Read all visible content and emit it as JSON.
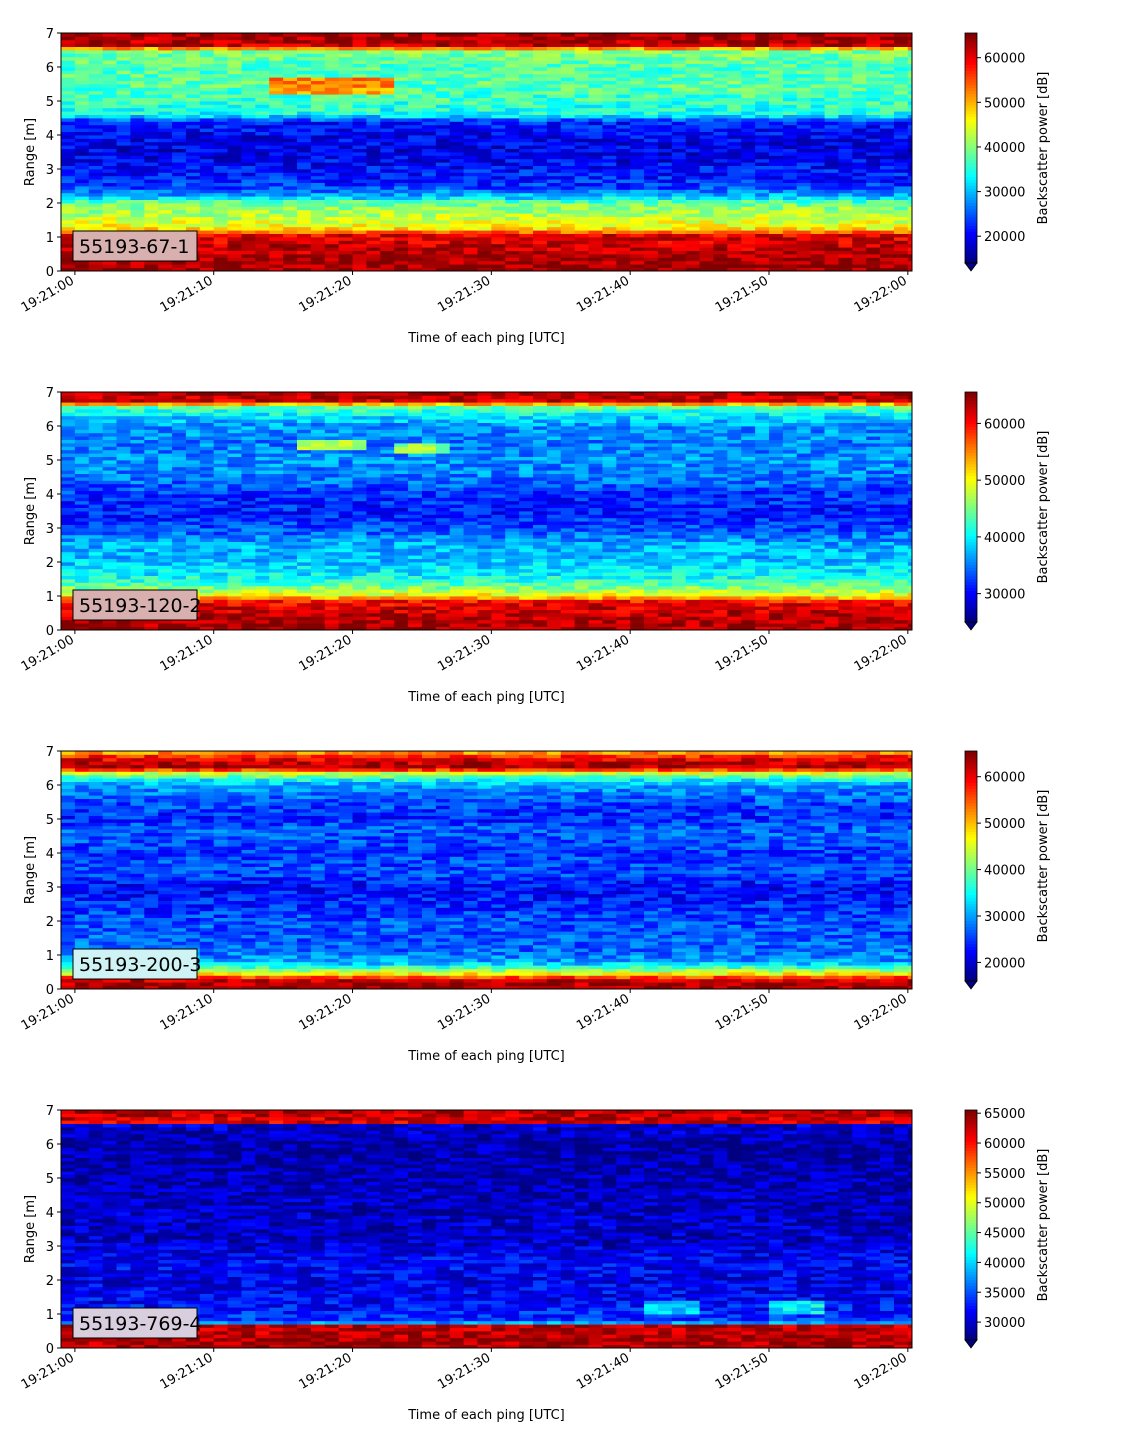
{
  "chart_data": [
    {
      "type": "heatmap",
      "label": "55193-67-1",
      "label_bg": "#d8b0b0",
      "xlabel": "Time of each ping [UTC]",
      "ylabel": "Range [m]",
      "colorbar_label": "Backscatter power [dB]",
      "xticks": [
        "19:21:00",
        "19:21:10",
        "19:21:20",
        "19:21:30",
        "19:21:40",
        "19:21:50",
        "19:22:00"
      ],
      "yticks": [
        "0",
        "1",
        "2",
        "3",
        "4",
        "5",
        "6",
        "7"
      ],
      "ylim": [
        0,
        7
      ],
      "xlim_seconds": [
        -1,
        60.3
      ],
      "cbar_ticks": [
        "20000",
        "30000",
        "40000",
        "50000",
        "60000"
      ],
      "clim": [
        14000,
        65535
      ],
      "colormap": "jet",
      "cbar_extend": "min",
      "profile": [
        [
          0.2,
          64000
        ],
        [
          0.5,
          63000
        ],
        [
          0.9,
          61000
        ],
        [
          1.1,
          60000
        ],
        [
          1.2,
          48000
        ],
        [
          1.5,
          44000
        ],
        [
          2.0,
          39000
        ],
        [
          2.2,
          30000
        ],
        [
          2.5,
          23000
        ],
        [
          3.0,
          21000
        ],
        [
          3.5,
          19000
        ],
        [
          4.0,
          20000
        ],
        [
          4.4,
          22000
        ],
        [
          4.6,
          34000
        ],
        [
          5.0,
          36000
        ],
        [
          5.5,
          38000
        ],
        [
          6.0,
          37000
        ],
        [
          6.5,
          40000
        ],
        [
          6.6,
          62000
        ],
        [
          7.0,
          64000
        ]
      ],
      "patches": [
        {
          "t": [
            14,
            22
          ],
          "r": [
            5.2,
            5.7
          ],
          "v": 52000
        }
      ]
    },
    {
      "type": "heatmap",
      "label": "55193-120-2",
      "label_bg": "#d8b0b0",
      "xlabel": "Time of each ping [UTC]",
      "ylabel": "Range [m]",
      "colorbar_label": "Backscatter power [dB]",
      "xticks": [
        "19:21:00",
        "19:21:10",
        "19:21:20",
        "19:21:30",
        "19:21:40",
        "19:21:50",
        "19:22:00"
      ],
      "yticks": [
        "0",
        "1",
        "2",
        "3",
        "4",
        "5",
        "6",
        "7"
      ],
      "ylim": [
        0,
        7
      ],
      "xlim_seconds": [
        -1,
        60.3
      ],
      "cbar_ticks": [
        "30000",
        "40000",
        "50000",
        "60000"
      ],
      "clim": [
        25000,
        65535
      ],
      "colormap": "jet",
      "cbar_extend": "min",
      "profile": [
        [
          0.2,
          64000
        ],
        [
          0.7,
          62000
        ],
        [
          0.85,
          60000
        ],
        [
          1.0,
          51000
        ],
        [
          1.3,
          44000
        ],
        [
          1.6,
          40000
        ],
        [
          2.0,
          38000
        ],
        [
          2.5,
          37000
        ],
        [
          3.0,
          33000
        ],
        [
          3.5,
          31000
        ],
        [
          4.0,
          32000
        ],
        [
          4.5,
          35000
        ],
        [
          5.0,
          36000
        ],
        [
          5.5,
          35000
        ],
        [
          6.0,
          36000
        ],
        [
          6.3,
          39000
        ],
        [
          6.6,
          45000
        ],
        [
          6.7,
          62000
        ],
        [
          7.0,
          64000
        ]
      ],
      "patches": [
        {
          "t": [
            16,
            20
          ],
          "r": [
            5.3,
            5.6
          ],
          "v": 47000
        },
        {
          "t": [
            23,
            26
          ],
          "r": [
            5.2,
            5.5
          ],
          "v": 46000
        }
      ]
    },
    {
      "type": "heatmap",
      "label": "55193-200-3",
      "label_bg": "#cff3f4",
      "xlabel": "Time of each ping [UTC]",
      "ylabel": "Range [m]",
      "colorbar_label": "Backscatter power [dB]",
      "xticks": [
        "19:21:00",
        "19:21:10",
        "19:21:20",
        "19:21:30",
        "19:21:40",
        "19:21:50",
        "19:22:00"
      ],
      "yticks": [
        "0",
        "1",
        "2",
        "3",
        "4",
        "5",
        "6",
        "7"
      ],
      "ylim": [
        0,
        7
      ],
      "xlim_seconds": [
        -1,
        60.3
      ],
      "cbar_ticks": [
        "20000",
        "30000",
        "40000",
        "50000",
        "60000"
      ],
      "clim": [
        16000,
        65535
      ],
      "colormap": "jet",
      "cbar_extend": "min",
      "profile": [
        [
          0.05,
          64000
        ],
        [
          0.3,
          62000
        ],
        [
          0.4,
          50000
        ],
        [
          0.6,
          40000
        ],
        [
          0.8,
          30000
        ],
        [
          1.2,
          27000
        ],
        [
          2.0,
          26000
        ],
        [
          2.5,
          24000
        ],
        [
          3.0,
          22000
        ],
        [
          3.4,
          26000
        ],
        [
          4.0,
          25000
        ],
        [
          4.7,
          27000
        ],
        [
          5.0,
          24000
        ],
        [
          5.5,
          26000
        ],
        [
          6.0,
          30000
        ],
        [
          6.2,
          36000
        ],
        [
          6.4,
          48000
        ],
        [
          6.5,
          64000
        ],
        [
          6.8,
          60000
        ],
        [
          7.0,
          50000
        ]
      ],
      "patches": []
    },
    {
      "type": "heatmap",
      "label": "55193-769-4",
      "label_bg": "#d8cede",
      "xlabel": "Time of each ping [UTC]",
      "ylabel": "Range [m]",
      "colorbar_label": "Backscatter power [dB]",
      "xticks": [
        "19:21:00",
        "19:21:10",
        "19:21:20",
        "19:21:30",
        "19:21:40",
        "19:21:50",
        "19:22:00"
      ],
      "yticks": [
        "0",
        "1",
        "2",
        "3",
        "4",
        "5",
        "6",
        "7"
      ],
      "ylim": [
        0,
        7
      ],
      "xlim_seconds": [
        -1,
        60.3
      ],
      "cbar_ticks": [
        "30000",
        "35000",
        "40000",
        "45000",
        "50000",
        "55000",
        "60000",
        "65000"
      ],
      "clim": [
        27000,
        65535
      ],
      "colormap": "jet",
      "cbar_extend": "min",
      "profile": [
        [
          0.2,
          64000
        ],
        [
          0.65,
          63000
        ],
        [
          0.72,
          40000
        ],
        [
          0.8,
          34000
        ],
        [
          1.3,
          32000
        ],
        [
          2.0,
          31000
        ],
        [
          2.5,
          32000
        ],
        [
          3.0,
          30000
        ],
        [
          4.0,
          29500
        ],
        [
          5.0,
          29000
        ],
        [
          6.0,
          28500
        ],
        [
          6.6,
          30000
        ],
        [
          6.65,
          62000
        ],
        [
          7.0,
          64000
        ]
      ],
      "patches": [
        {
          "t": [
            41,
            44
          ],
          "r": [
            1.0,
            1.4
          ],
          "v": 40000
        },
        {
          "t": [
            50,
            53
          ],
          "r": [
            1.0,
            1.4
          ],
          "v": 41000
        }
      ]
    }
  ]
}
